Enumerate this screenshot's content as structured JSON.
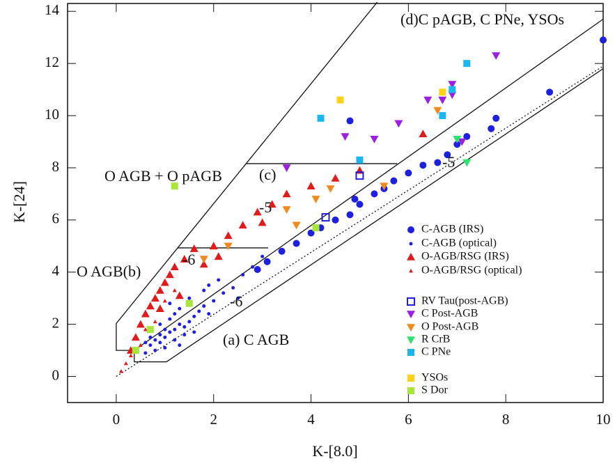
{
  "chart_data": {
    "type": "scatter",
    "xlabel": "K-[8.0]",
    "ylabel": "K-[24]",
    "xlim": [
      -1,
      10
    ],
    "ylim": [
      -1,
      14.3
    ],
    "xticks": [
      0,
      2,
      4,
      6,
      8,
      10
    ],
    "yticks": [
      0,
      2,
      4,
      6,
      8,
      10,
      12,
      14
    ],
    "annotations": [
      "(d)C pAGB, C PNe, YSOs",
      "O AGB + O pAGB",
      "(c)",
      "-5",
      "-5",
      "O AGB(b)",
      "-6",
      "-6",
      "(a) C AGB"
    ],
    "boundaries": [
      {
        "x": [
          5.36,
          0,
          0,
          0.37,
          0.37,
          1.03,
          10
        ],
        "y": [
          14.35,
          2.03,
          1.0,
          1.0,
          0.56,
          0.56,
          11.8
        ]
      },
      {
        "x": [
          0.37,
          10
        ],
        "y": [
          1.0,
          13.7
        ]
      },
      {
        "x": [
          1.26,
          3.12
        ],
        "y": [
          4.93,
          4.93
        ]
      },
      {
        "x": [
          2.67,
          5.77
        ],
        "y": [
          8.16,
          8.16
        ]
      }
    ],
    "trend_line": {
      "x": [
        0,
        10
      ],
      "y": [
        0,
        11.9
      ]
    },
    "series": [
      {
        "name": "C-AGB (IRS)",
        "color": "#1f1fe0",
        "marker": "circle",
        "x": [
          10.0,
          8.9,
          7.8,
          7.7,
          7.2,
          7.0,
          6.8,
          6.6,
          6.3,
          6.0,
          5.7,
          5.5,
          5.3,
          5.0,
          4.8,
          4.5,
          4.2,
          4.0,
          3.7,
          3.4,
          3.1,
          4.8,
          2.9,
          4.9
        ],
        "y": [
          12.9,
          10.9,
          9.9,
          9.5,
          9.2,
          8.9,
          8.5,
          8.2,
          8.1,
          7.8,
          7.5,
          7.2,
          7.0,
          6.6,
          6.2,
          6.0,
          5.7,
          5.5,
          5.1,
          4.8,
          4.4,
          9.8,
          4.1,
          6.8
        ]
      },
      {
        "name": "C-AGB (optical)",
        "color": "#1f1fe0",
        "marker": "dot",
        "x": [
          0.6,
          0.7,
          0.8,
          0.9,
          1.0,
          1.1,
          1.2,
          1.3,
          1.4,
          1.5,
          0.8,
          0.9,
          1.0,
          1.1,
          1.2,
          1.3,
          1.6,
          1.7,
          1.8,
          1.9,
          2.0,
          2.2,
          2.4,
          2.6,
          2.8,
          3.0,
          1.0,
          1.2,
          1.4,
          0.7,
          0.9,
          1.1,
          1.5,
          1.8,
          2.1,
          2.5,
          1.3,
          1.6,
          0.6,
          1.9
        ],
        "y": [
          0.9,
          1.2,
          1.4,
          1.6,
          1.5,
          1.7,
          1.8,
          2.0,
          1.9,
          2.1,
          1.0,
          1.3,
          1.8,
          2.2,
          2.4,
          2.6,
          2.3,
          2.5,
          2.7,
          2.4,
          2.9,
          3.2,
          3.4,
          3.9,
          4.2,
          4.6,
          1.1,
          1.4,
          1.6,
          1.5,
          2.0,
          2.8,
          3.0,
          3.3,
          3.7,
          3.0,
          1.2,
          1.7,
          1.3,
          3.5
        ]
      },
      {
        "name": "O-AGB/RSG (IRS)",
        "color": "#e01b1b",
        "marker": "triangle",
        "x": [
          0.3,
          0.4,
          0.5,
          0.6,
          0.7,
          0.8,
          0.9,
          1.0,
          1.1,
          1.2,
          1.4,
          1.6,
          1.8,
          2.0,
          2.3,
          2.6,
          2.9,
          3.2,
          3.5,
          4.0,
          4.5,
          5.0,
          6.3,
          3.0,
          2.1,
          1.3,
          0.9
        ],
        "y": [
          1.0,
          1.5,
          2.0,
          2.4,
          2.7,
          3.0,
          3.3,
          3.6,
          3.9,
          4.2,
          4.5,
          4.9,
          4.3,
          5.0,
          5.4,
          5.8,
          6.3,
          6.6,
          7.0,
          7.3,
          7.6,
          7.9,
          9.3,
          5.9,
          4.6,
          3.1,
          2.6
        ]
      },
      {
        "name": "O-AGB/RSG (optical)",
        "color": "#e01b1b",
        "marker": "small-triangle",
        "x": [
          0.1,
          0.2,
          0.3,
          0.5,
          0.6,
          0.8,
          1.0,
          1.2
        ],
        "y": [
          0.2,
          0.5,
          0.8,
          1.2,
          1.8,
          2.1,
          2.9,
          3.3
        ]
      },
      {
        "name": "RV Tau(post-AGB)",
        "color": "#1f1fe0",
        "marker": "open-square",
        "x": [
          5.0,
          4.3
        ],
        "y": [
          7.7,
          6.1
        ]
      },
      {
        "name": "C Post-AGB",
        "color": "#9a1fe0",
        "marker": "down-triangle",
        "x": [
          7.8,
          6.9,
          6.7,
          6.4,
          6.9,
          5.8,
          5.3,
          4.7,
          3.5,
          7.1
        ],
        "y": [
          12.3,
          11.2,
          10.6,
          10.6,
          10.8,
          9.7,
          9.1,
          9.2,
          8.0,
          9.0
        ]
      },
      {
        "name": "O Post-AGB",
        "color": "#f08a1d",
        "marker": "down-triangle",
        "x": [
          4.1,
          3.7,
          3.5,
          4.4,
          2.3,
          6.6,
          5.5,
          1.8
        ],
        "y": [
          6.8,
          5.8,
          6.4,
          7.2,
          5.0,
          10.2,
          7.3,
          4.5
        ]
      },
      {
        "name": "R CrB",
        "color": "#2ee36b",
        "marker": "down-triangle",
        "x": [
          7.2,
          7.0
        ],
        "y": [
          8.2,
          9.1
        ]
      },
      {
        "name": "C PNe",
        "color": "#1ab6f0",
        "marker": "square",
        "x": [
          7.2,
          6.9,
          6.7,
          4.2,
          5.0
        ],
        "y": [
          12.0,
          11.0,
          10.0,
          9.9,
          8.3
        ]
      },
      {
        "name": "YSOs",
        "color": "#ffd21a",
        "marker": "square",
        "x": [
          4.6,
          6.7
        ],
        "y": [
          10.6,
          10.9
        ]
      },
      {
        "name": "S Dor",
        "color": "#a8e63a",
        "marker": "square",
        "x": [
          1.2,
          4.1,
          0.7,
          1.5,
          0.4
        ],
        "y": [
          7.3,
          5.7,
          1.8,
          2.8,
          1.0
        ]
      }
    ]
  }
}
